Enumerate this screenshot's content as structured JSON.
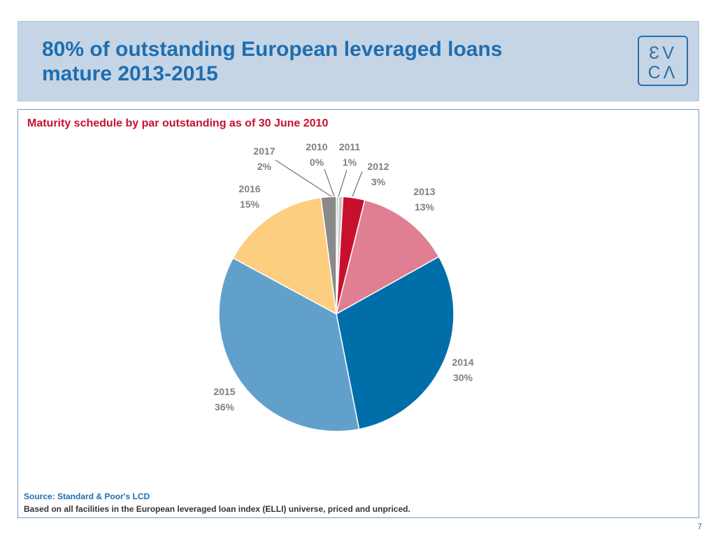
{
  "header": {
    "title_line1": "80% of outstanding European leveraged loans",
    "title_line2": "mature 2013-2015",
    "logo_top": "ƐV",
    "logo_bottom": "CΛ"
  },
  "footer": {
    "source": "Source: Standard & Poor's LCD",
    "note": "Based on all facilities in the European leveraged loan index (ELLI) universe, priced and unpriced.",
    "page_number": "7"
  },
  "colors": {
    "accent_blue": "#1f6eb0",
    "title_red": "#c8102e",
    "header_bg": "#c5d5e6"
  },
  "chart_data": {
    "type": "pie",
    "title": "Maturity schedule by par outstanding as of 30 June 2010",
    "start_angle": "12 o'clock, clockwise",
    "slices": [
      {
        "label": "2010",
        "display": "0%",
        "value": 0.3,
        "color": "#b8b8b8"
      },
      {
        "label": "2011",
        "display": "1%",
        "value": 0.6,
        "color": "#c9c9c9"
      },
      {
        "label": "2012",
        "display": "3%",
        "value": 3,
        "color": "#c8102e"
      },
      {
        "label": "2013",
        "display": "13%",
        "value": 13,
        "color": "#e07f93"
      },
      {
        "label": "2014",
        "display": "30%",
        "value": 30,
        "color": "#006ea8"
      },
      {
        "label": "2015",
        "display": "36%",
        "value": 36,
        "color": "#62a0cc"
      },
      {
        "label": "2016",
        "display": "15%",
        "value": 15,
        "color": "#fdcd80"
      },
      {
        "label": "2017",
        "display": "2%",
        "value": 2.1,
        "color": "#8a8a8a"
      }
    ]
  }
}
